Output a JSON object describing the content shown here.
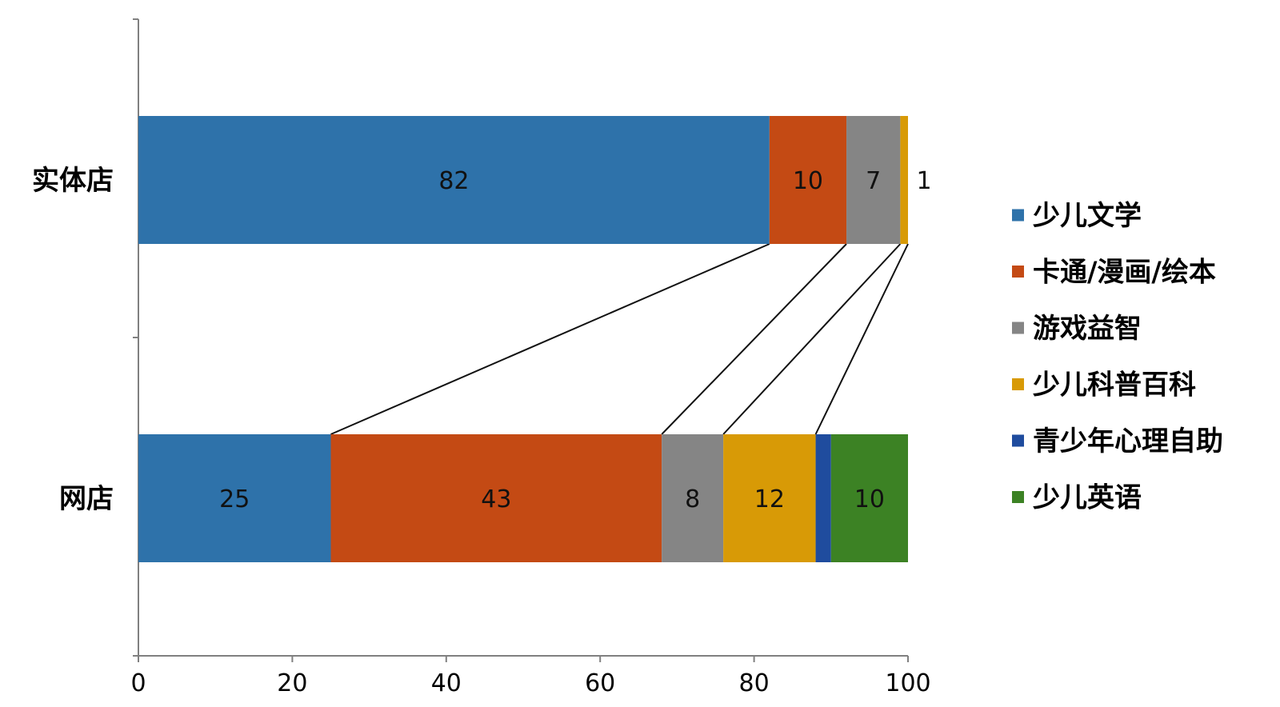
{
  "chart_data": {
    "type": "bar",
    "orientation": "horizontal",
    "stacked": true,
    "categories": [
      "实体店",
      "网店"
    ],
    "series": [
      {
        "name": "少儿文学",
        "color": "#2E72AA",
        "values": [
          82,
          25
        ]
      },
      {
        "name": "卡通/漫画/绘本",
        "color": "#C44A14",
        "values": [
          10,
          43
        ]
      },
      {
        "name": "游戏益智",
        "color": "#858585",
        "values": [
          7,
          8
        ]
      },
      {
        "name": "少儿科普百科",
        "color": "#D89A06",
        "values": [
          1,
          12
        ]
      },
      {
        "name": "青少年心理自助",
        "color": "#1F4C9E",
        "values": [
          0,
          2
        ]
      },
      {
        "name": "少儿英语",
        "color": "#3C8224",
        "values": [
          0,
          10
        ]
      }
    ],
    "xlim": [
      0,
      100
    ],
    "xticks": [
      0,
      20,
      40,
      60,
      80,
      100
    ],
    "grid": false,
    "legend_position": "right",
    "connector_lines": true
  }
}
